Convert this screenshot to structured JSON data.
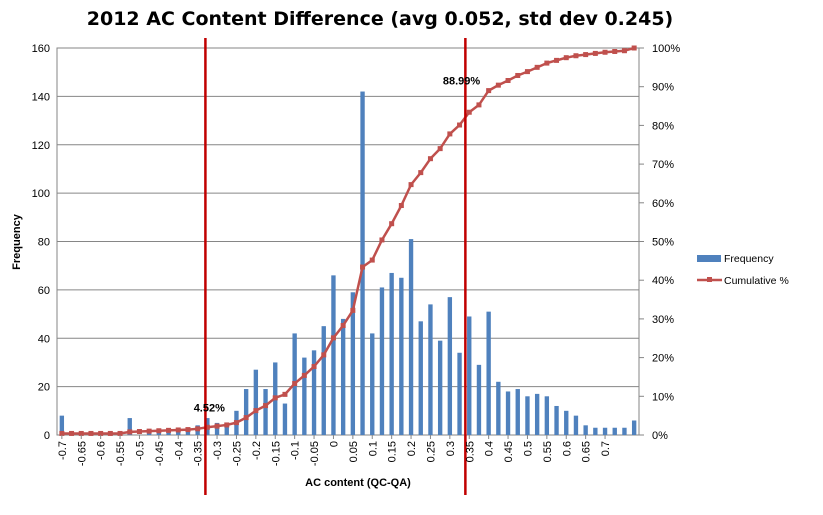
{
  "chart_data": {
    "type": "bar+line",
    "title": "2012 AC Content Difference (avg 0.052, std dev 0.245)",
    "xlabel": "AC content (QC-QA)",
    "ylabel": "Frequency",
    "ylim": [
      0,
      160
    ],
    "y_ticks": [
      "0",
      "20",
      "40",
      "60",
      "80",
      "100",
      "120",
      "140",
      "160"
    ],
    "y2lim": [
      0,
      100
    ],
    "y2_ticks": [
      "0%",
      "10%",
      "20%",
      "30%",
      "40%",
      "50%",
      "60%",
      "70%",
      "80%",
      "90%",
      "100%"
    ],
    "x_ticks": [
      "-0.7",
      "-0.65",
      "-0.6",
      "-0.55",
      "-0.5",
      "-0.45",
      "-0.4",
      "-0.35",
      "-0.3",
      "-0.25",
      "-0.2",
      "-0.15",
      "-0.1",
      "-0.05",
      "0",
      "0.05",
      "0.1",
      "0.15",
      "0.2",
      "0.25",
      "0.3",
      "0.35",
      "0.4",
      "0.45",
      "0.5",
      "0.55",
      "0.6",
      "0.65",
      "0.7"
    ],
    "x_start": -0.7,
    "x_step": 0.025,
    "grid": true,
    "legend_position": "right",
    "series": [
      {
        "name": "Frequency",
        "kind": "bar",
        "axis": "left",
        "color": "#4f81bd",
        "values": [
          8,
          0,
          0,
          0,
          0,
          0,
          0,
          7,
          0,
          1,
          2,
          1,
          2,
          2,
          4,
          7,
          5,
          5,
          10,
          19,
          27,
          19,
          30,
          13,
          42,
          32,
          35,
          45,
          66,
          48,
          59,
          142,
          42,
          61,
          67,
          65,
          81,
          47,
          54,
          39,
          57,
          34,
          49,
          29,
          51,
          22,
          18,
          19,
          16,
          17,
          16,
          12,
          10,
          8,
          4,
          3,
          3,
          3,
          3,
          6
        ]
      },
      {
        "name": "Cumulative %",
        "kind": "line",
        "axis": "right",
        "color": "#c0504d",
        "values": [
          0.4,
          0.4,
          0.4,
          0.4,
          0.4,
          0.4,
          0.4,
          0.8,
          0.9,
          1.0,
          1.1,
          1.2,
          1.3,
          1.4,
          1.6,
          2.0,
          2.3,
          2.6,
          3.2,
          4.5,
          6.3,
          7.6,
          9.6,
          10.5,
          13.3,
          15.4,
          17.7,
          20.7,
          25.1,
          28.3,
          32.2,
          43.4,
          45.2,
          50.4,
          54.6,
          59.3,
          64.7,
          67.8,
          71.4,
          74.0,
          77.8,
          80.1,
          83.4,
          85.3,
          88.99,
          90.4,
          91.6,
          92.9,
          93.9,
          95.0,
          96.1,
          96.8,
          97.5,
          98.0,
          98.3,
          98.6,
          98.9,
          99.1,
          99.3,
          100.0
        ]
      }
    ],
    "annotations": [
      {
        "text": "4.52%",
        "x": -0.32,
        "y_percent": 4.52
      },
      {
        "text": "88.99%",
        "x": 0.33,
        "y_percent": 88.99
      }
    ],
    "reference_lines": [
      {
        "x": -0.33,
        "color": "#c00000"
      },
      {
        "x": 0.34,
        "color": "#c00000"
      }
    ]
  }
}
